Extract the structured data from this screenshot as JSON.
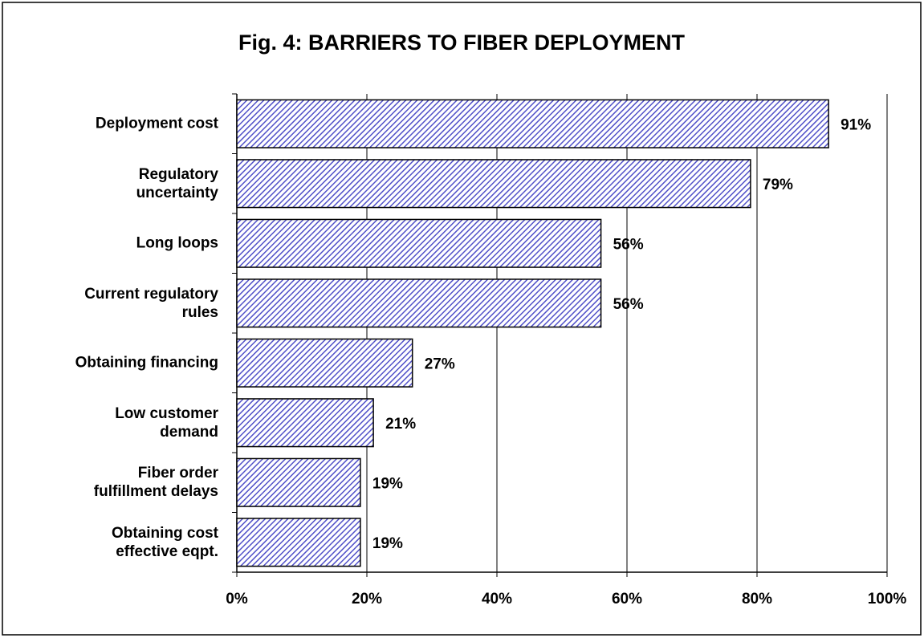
{
  "chart_data": {
    "type": "hbar",
    "title": "Fig. 4:  BARRIERS TO FIBER DEPLOYMENT",
    "categories": [
      "Deployment cost",
      "Regulatory\nuncertainty",
      "Long loops",
      "Current regulatory\nrules",
      "Obtaining financing",
      "Low customer\ndemand",
      "Fiber order\nfulfillment delays",
      "Obtaining cost\neffective eqpt."
    ],
    "values": [
      91,
      79,
      56,
      56,
      27,
      21,
      19,
      19
    ],
    "value_labels": [
      "91%",
      "79%",
      "56%",
      "56%",
      "27%",
      "21%",
      "19%",
      "19%"
    ],
    "color": "#5050c8",
    "xlim": [
      0,
      100
    ],
    "xticks": [
      {
        "value": 0,
        "label": "0%"
      },
      {
        "value": 20,
        "label": "20%"
      },
      {
        "value": 40,
        "label": "40%"
      },
      {
        "value": 60,
        "label": "60%"
      },
      {
        "value": 80,
        "label": "80%"
      },
      {
        "value": 100,
        "label": "100%"
      }
    ],
    "grid": true
  }
}
